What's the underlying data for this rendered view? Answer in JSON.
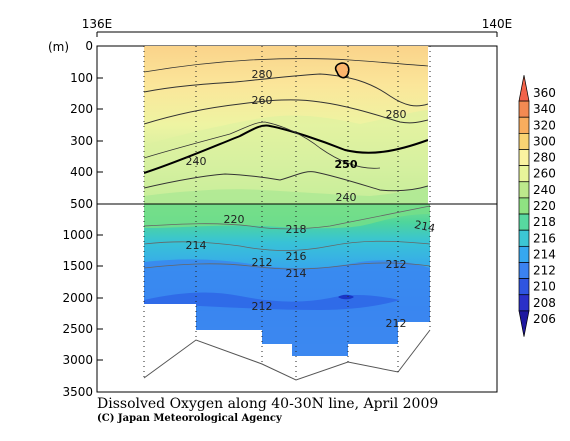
{
  "chart_data": {
    "type": "heatmap",
    "title": "Dissolved Oxygen along 40-30N line, April 2009",
    "credit": "(C) Japan Meteorological Agency",
    "ylabel": "(m)",
    "x_labels": [
      "136E",
      "140E"
    ],
    "y_ticks": [
      "0",
      "100",
      "200",
      "300",
      "400",
      "500",
      "1000",
      "1500",
      "2000",
      "2500",
      "3000",
      "3500"
    ],
    "colorbar": {
      "labels": [
        "360",
        "340",
        "320",
        "300",
        "280",
        "260",
        "240",
        "220",
        "218",
        "216",
        "214",
        "212",
        "210",
        "208",
        "206"
      ],
      "colors": [
        "#f2634a",
        "#f48a52",
        "#f9ad5e",
        "#fad373",
        "#faf3a0",
        "#e8f59a",
        "#bde98c",
        "#8fe282",
        "#57d8a0",
        "#3cc6d4",
        "#36a8f0",
        "#3b82f0",
        "#2f55e0",
        "#2a30c8",
        "#1f18a0"
      ]
    },
    "contour_labels": [
      "280",
      "280",
      "260",
      "250",
      "240",
      "240",
      "220",
      "218",
      "214",
      "214",
      "216",
      "212",
      "214",
      "212",
      "212",
      "212"
    ]
  }
}
